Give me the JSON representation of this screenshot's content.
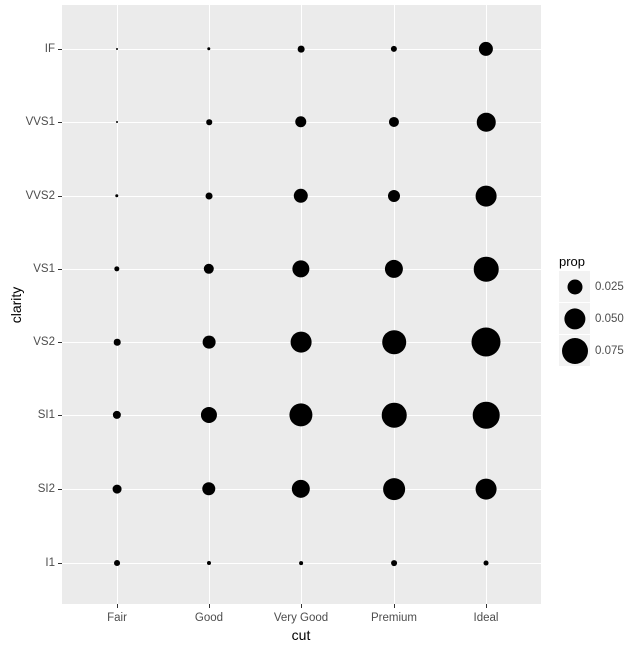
{
  "chart_data": {
    "type": "scatter",
    "subtype": "bubble-count-proportion",
    "title": "",
    "xlabel": "cut",
    "ylabel": "clarity",
    "x_categories": [
      "Fair",
      "Good",
      "Very Good",
      "Premium",
      "Ideal"
    ],
    "y_categories_top_to_bottom": [
      "IF",
      "VVS1",
      "VVS2",
      "VS1",
      "VS2",
      "SI1",
      "SI2",
      "I1"
    ],
    "size_variable": "prop",
    "legend": {
      "title": "prop",
      "position": "right",
      "entries": [
        {
          "label": "0.025",
          "value": 0.025
        },
        {
          "label": "0.050",
          "value": 0.05
        },
        {
          "label": "0.075",
          "value": 0.075
        }
      ]
    },
    "grid": true,
    "points": [
      {
        "cut": "Fair",
        "clarity": "IF",
        "prop": 0.0002
      },
      {
        "cut": "Good",
        "clarity": "IF",
        "prop": 0.0013
      },
      {
        "cut": "Very Good",
        "clarity": "IF",
        "prop": 0.005
      },
      {
        "cut": "Premium",
        "clarity": "IF",
        "prop": 0.0043
      },
      {
        "cut": "Ideal",
        "clarity": "IF",
        "prop": 0.0224
      },
      {
        "cut": "Fair",
        "clarity": "VVS1",
        "prop": 0.0003
      },
      {
        "cut": "Good",
        "clarity": "VVS1",
        "prop": 0.0034
      },
      {
        "cut": "Very Good",
        "clarity": "VVS1",
        "prop": 0.0146
      },
      {
        "cut": "Premium",
        "clarity": "VVS1",
        "prop": 0.0114
      },
      {
        "cut": "Ideal",
        "clarity": "VVS1",
        "prop": 0.038
      },
      {
        "cut": "Fair",
        "clarity": "VVS2",
        "prop": 0.0013
      },
      {
        "cut": "Good",
        "clarity": "VVS2",
        "prop": 0.0053
      },
      {
        "cut": "Very Good",
        "clarity": "VVS2",
        "prop": 0.0231
      },
      {
        "cut": "Premium",
        "clarity": "VVS2",
        "prop": 0.0161
      },
      {
        "cut": "Ideal",
        "clarity": "VVS2",
        "prop": 0.048
      },
      {
        "cut": "Fair",
        "clarity": "VS1",
        "prop": 0.0032
      },
      {
        "cut": "Good",
        "clarity": "VS1",
        "prop": 0.012
      },
      {
        "cut": "Very Good",
        "clarity": "VS1",
        "prop": 0.0331
      },
      {
        "cut": "Premium",
        "clarity": "VS1",
        "prop": 0.0367
      },
      {
        "cut": "Ideal",
        "clarity": "VS1",
        "prop": 0.067
      },
      {
        "cut": "Fair",
        "clarity": "VS2",
        "prop": 0.0048
      },
      {
        "cut": "Good",
        "clarity": "VS2",
        "prop": 0.0181
      },
      {
        "cut": "Very Good",
        "clarity": "VS2",
        "prop": 0.048
      },
      {
        "cut": "Premium",
        "clarity": "VS2",
        "prop": 0.0617
      },
      {
        "cut": "Ideal",
        "clarity": "VS2",
        "prop": 0.0935
      },
      {
        "cut": "Fair",
        "clarity": "SI1",
        "prop": 0.0076
      },
      {
        "cut": "Good",
        "clarity": "SI1",
        "prop": 0.0289
      },
      {
        "cut": "Very Good",
        "clarity": "SI1",
        "prop": 0.0595
      },
      {
        "cut": "Premium",
        "clarity": "SI1",
        "prop": 0.0669
      },
      {
        "cut": "Ideal",
        "clarity": "SI1",
        "prop": 0.0785
      },
      {
        "cut": "Fair",
        "clarity": "SI2",
        "prop": 0.0087
      },
      {
        "cut": "Good",
        "clarity": "SI2",
        "prop": 0.0201
      },
      {
        "cut": "Very Good",
        "clarity": "SI2",
        "prop": 0.0374
      },
      {
        "cut": "Premium",
        "clarity": "SI2",
        "prop": 0.0525
      },
      {
        "cut": "Ideal",
        "clarity": "SI2",
        "prop": 0.0482
      },
      {
        "cut": "Fair",
        "clarity": "I1",
        "prop": 0.0039
      },
      {
        "cut": "Good",
        "clarity": "I1",
        "prop": 0.0018
      },
      {
        "cut": "Very Good",
        "clarity": "I1",
        "prop": 0.0016
      },
      {
        "cut": "Premium",
        "clarity": "I1",
        "prop": 0.0038
      },
      {
        "cut": "Ideal",
        "clarity": "I1",
        "prop": 0.0027
      }
    ]
  },
  "axes": {
    "x_title": "cut",
    "y_title": "clarity"
  },
  "colors": {
    "panel_bg": "#ebebeb",
    "grid": "#ffffff",
    "point": "#000000",
    "tick_text": "#4d4d4d",
    "legend_key_bg": "#f2f2f2"
  }
}
